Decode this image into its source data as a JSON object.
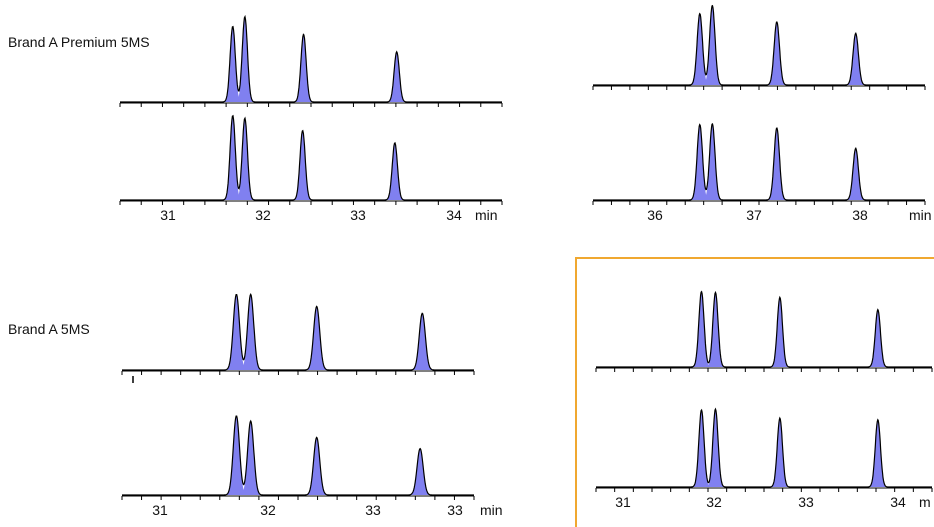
{
  "labels": {
    "top_left": "Brand A Premium 5MS",
    "bottom_left": "Brand A 5MS"
  },
  "colors": {
    "peak_fill": "#8080f0",
    "line": "#000000",
    "highlight": "#f0a830"
  },
  "chart_data": [
    {
      "type": "line",
      "title": "Brand A Premium 5MS",
      "xlabel": "min",
      "xlim": [
        30.45,
        34.55
      ],
      "ticks": [
        "31",
        "32",
        "33",
        "34"
      ],
      "tick_suffix": "min",
      "series": [
        {
          "peaks": [
            {
              "t": 31.66,
              "h": 0.86
            },
            {
              "t": 31.79,
              "h": 0.97
            },
            {
              "t": 32.42,
              "h": 0.77
            },
            {
              "t": 33.42,
              "h": 0.57
            }
          ]
        },
        {
          "peaks": [
            {
              "t": 31.66,
              "h": 0.96
            },
            {
              "t": 31.79,
              "h": 0.93
            },
            {
              "t": 32.41,
              "h": 0.79
            },
            {
              "t": 33.4,
              "h": 0.65
            }
          ]
        }
      ]
    },
    {
      "type": "line",
      "xlim": [
        35.2,
        38.65
      ],
      "ticks": [
        "36",
        "37",
        "38"
      ],
      "tick_suffix": "min",
      "series": [
        {
          "peaks": [
            {
              "t": 36.31,
              "h": 0.87
            },
            {
              "t": 36.44,
              "h": 0.97
            },
            {
              "t": 37.11,
              "h": 0.77
            },
            {
              "t": 37.93,
              "h": 0.63
            }
          ]
        },
        {
          "peaks": [
            {
              "t": 36.31,
              "h": 0.92
            },
            {
              "t": 36.44,
              "h": 0.93
            },
            {
              "t": 37.11,
              "h": 0.88
            },
            {
              "t": 37.93,
              "h": 0.63
            }
          ]
        }
      ]
    },
    {
      "type": "line",
      "title": "Brand A 5MS",
      "xlabel": "min",
      "xlim": [
        30.45,
        33.65
      ],
      "ticks": [
        "31",
        "32",
        "33",
        "33"
      ],
      "tick_suffix": "min",
      "series": [
        {
          "peaks": [
            {
              "t": 31.49,
              "h": 0.88
            },
            {
              "t": 31.62,
              "h": 0.88
            },
            {
              "t": 32.22,
              "h": 0.74
            },
            {
              "t": 33.18,
              "h": 0.66
            }
          ]
        },
        {
          "peaks": [
            {
              "t": 31.49,
              "h": 0.92
            },
            {
              "t": 31.62,
              "h": 0.86
            },
            {
              "t": 32.22,
              "h": 0.67
            },
            {
              "t": 33.16,
              "h": 0.54
            }
          ]
        }
      ]
    },
    {
      "type": "line",
      "xlim": [
        30.75,
        34.35
      ],
      "ticks": [
        "31",
        "32",
        "33",
        "34"
      ],
      "tick_suffix": "m",
      "series": [
        {
          "peaks": [
            {
              "t": 31.88,
              "h": 0.92
            },
            {
              "t": 32.03,
              "h": 0.91
            },
            {
              "t": 32.72,
              "h": 0.85
            },
            {
              "t": 33.77,
              "h": 0.7
            }
          ]
        },
        {
          "peaks": [
            {
              "t": 31.88,
              "h": 0.94
            },
            {
              "t": 32.03,
              "h": 0.95
            },
            {
              "t": 32.72,
              "h": 0.84
            },
            {
              "t": 33.77,
              "h": 0.82
            }
          ]
        }
      ]
    }
  ]
}
